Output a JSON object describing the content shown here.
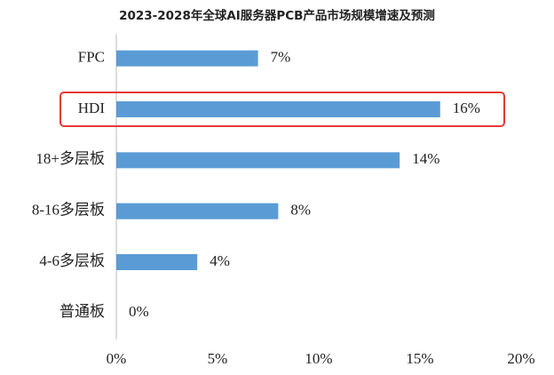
{
  "chart_data": {
    "type": "bar",
    "orientation": "horizontal",
    "title": "2023-2028年全球AI服务器PCB产品市场规模增速及预测",
    "categories": [
      "FPC",
      "HDI",
      "18+多层板",
      "8-16多层板",
      "4-6多层板",
      "普通板"
    ],
    "values": [
      7,
      16,
      14,
      8,
      4,
      0
    ],
    "value_labels": [
      "7%",
      "16%",
      "14%",
      "8%",
      "4%",
      "0%"
    ],
    "color": "#5b9bd5",
    "xlim": [
      0,
      20
    ],
    "xticks": [
      {
        "value": 0,
        "label": "0%"
      },
      {
        "value": 5,
        "label": "5%"
      },
      {
        "value": 10,
        "label": "10%"
      },
      {
        "value": 15,
        "label": "15%"
      },
      {
        "value": 20,
        "label": "20%"
      }
    ],
    "highlight_index": 1,
    "highlight_color": "#e53935"
  }
}
